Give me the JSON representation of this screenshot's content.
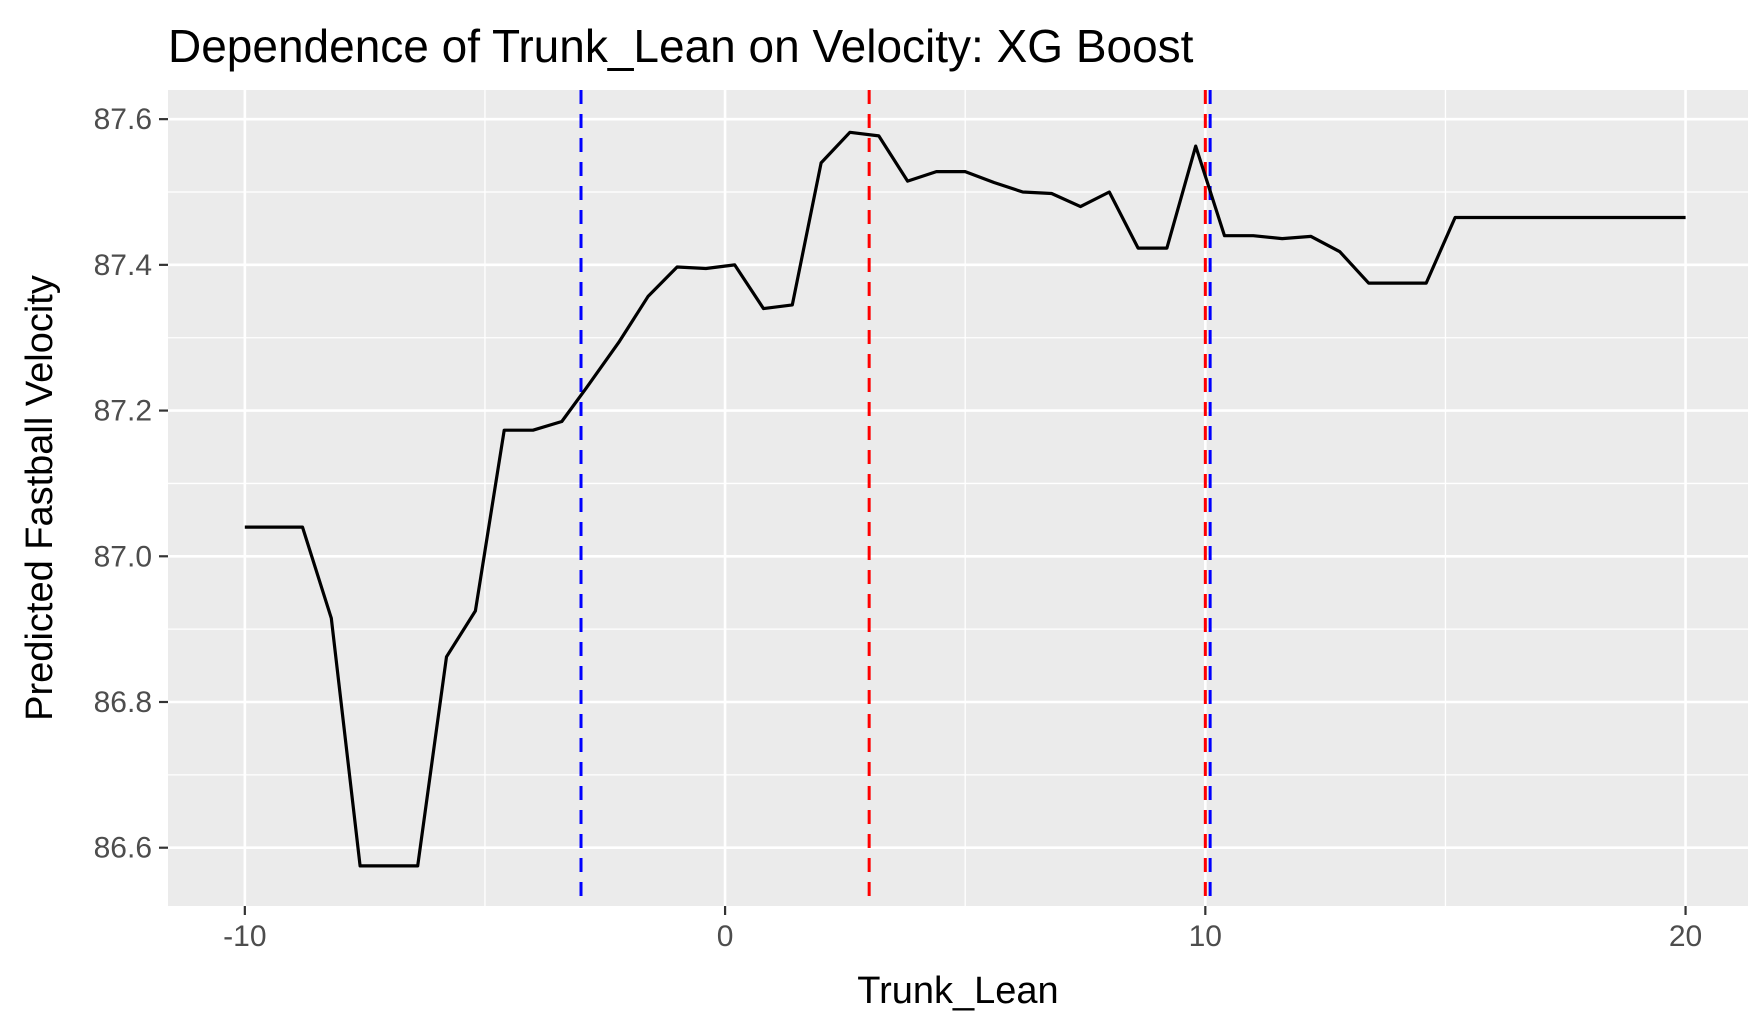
{
  "chart_data": {
    "type": "line",
    "title": "Dependence of Trunk_Lean on Velocity: XG Boost",
    "xlabel": "Trunk_Lean",
    "ylabel": "Predicted Fastball Velocity",
    "xlim": [
      -11.6,
      21.3
    ],
    "ylim": [
      86.52,
      87.64
    ],
    "x_ticks": [
      -10,
      0,
      10,
      20
    ],
    "x_tick_labels": [
      "-10",
      "0",
      "10",
      "20"
    ],
    "y_ticks": [
      86.6,
      86.8,
      87.0,
      87.2,
      87.4,
      87.6
    ],
    "y_tick_labels": [
      "86.6",
      "86.8",
      "87.0",
      "87.2",
      "87.4",
      "87.6"
    ],
    "x_minor_ticks": [
      -5,
      5,
      15
    ],
    "y_minor_ticks": [
      86.7,
      86.9,
      87.1,
      87.3,
      87.5
    ],
    "grid": true,
    "background": "#ebebeb",
    "series": [
      {
        "color": "#000000",
        "x": [
          -10,
          -9.4,
          -8.8,
          -8.2,
          -7.6,
          -7.0,
          -6.4,
          -5.8,
          -5.2,
          -4.6,
          -4.0,
          -3.4,
          -2.9,
          -2.2,
          -1.6,
          -1.0,
          -0.4,
          0.2,
          0.8,
          1.4,
          2.0,
          2.6,
          3.2,
          3.8,
          4.4,
          5.0,
          5.6,
          6.2,
          6.8,
          7.4,
          8.0,
          8.6,
          9.2,
          9.8,
          10.4,
          11.0,
          11.6,
          12.2,
          12.8,
          13.4,
          14.0,
          14.6,
          15.2,
          15.8,
          20.0
        ],
        "y": [
          87.04,
          87.04,
          87.04,
          86.915,
          86.575,
          86.575,
          86.575,
          86.862,
          86.925,
          87.173,
          87.173,
          87.185,
          87.23,
          87.295,
          87.357,
          87.397,
          87.395,
          87.4,
          87.34,
          87.345,
          87.54,
          87.582,
          87.577,
          87.515,
          87.528,
          87.528,
          87.513,
          87.5,
          87.498,
          87.48,
          87.5,
          87.423,
          87.423,
          87.563,
          87.44,
          87.44,
          87.436,
          87.439,
          87.418,
          87.375,
          87.375,
          87.375,
          87.465,
          87.465,
          87.465
        ]
      }
    ],
    "vlines": [
      {
        "x": -3.0,
        "color": "#0000ff",
        "dash": "dashed"
      },
      {
        "x": 3.0,
        "color": "#ff0000",
        "dash": "dashed"
      },
      {
        "x": 10.0,
        "color": "#ff0000",
        "dash": "dashed"
      },
      {
        "x": 10.1,
        "color": "#0000ff",
        "dash": "dashed"
      }
    ]
  }
}
